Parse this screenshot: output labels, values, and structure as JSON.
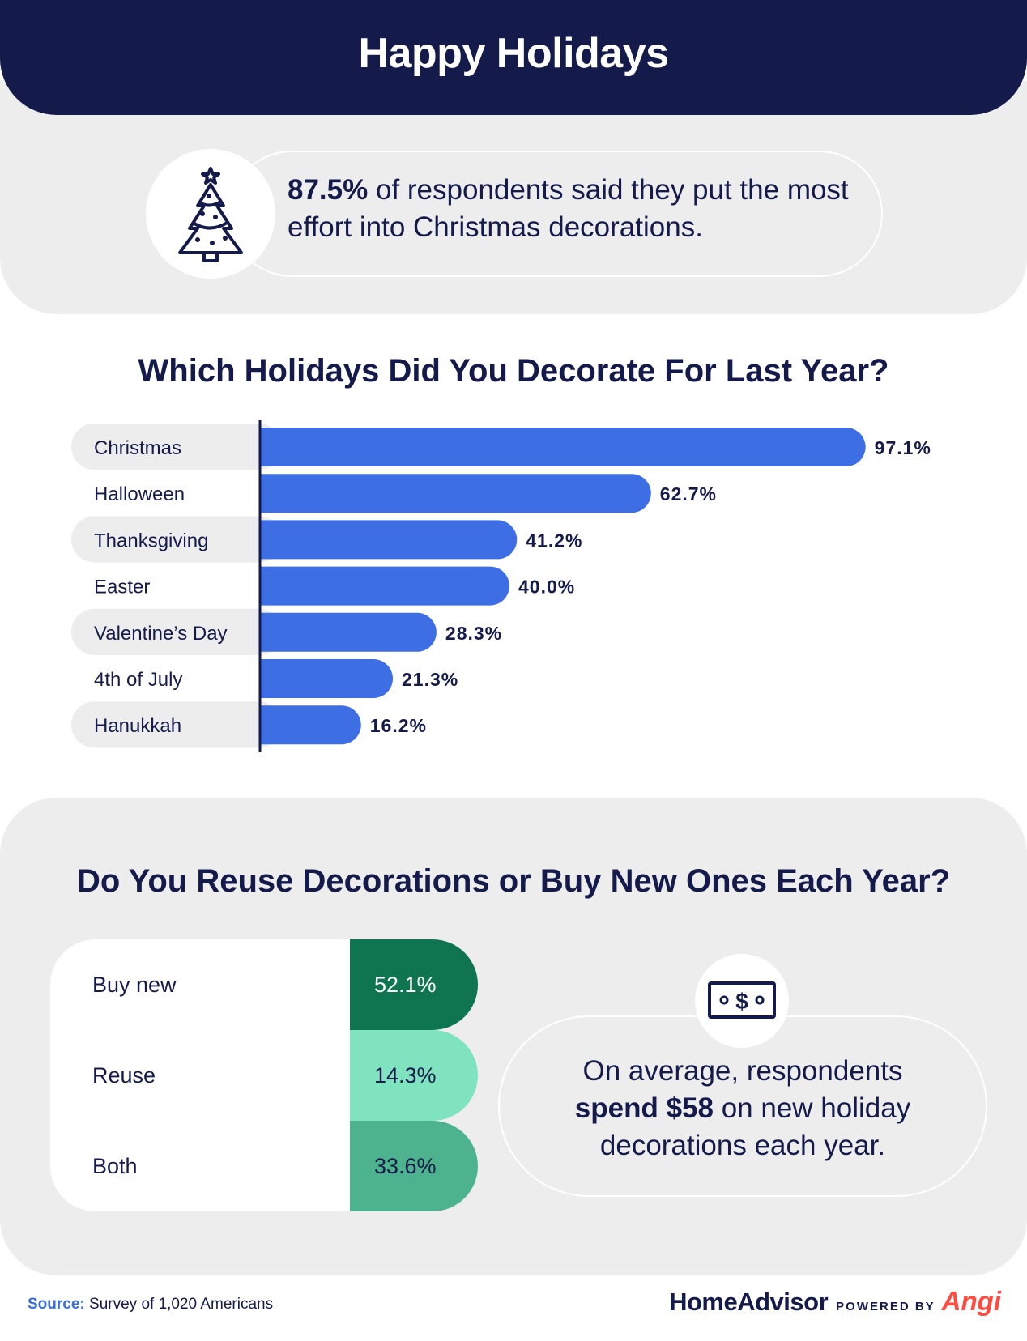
{
  "header": {
    "title": "Happy Holidays"
  },
  "callout": {
    "stat": "87.5%",
    "text": " of respondents said they put the most effort into Christmas decorations."
  },
  "icons": {
    "tree": "christmas-tree-icon",
    "money": "dollar-bill-icon"
  },
  "colors": {
    "navy": "#141a4a",
    "bar_blue": "#3d6ee4",
    "panel_gray": "#ededed",
    "buy_new": "#0f7450",
    "reuse": "#80e3c0",
    "both": "#4db38f",
    "angi_red": "#ff4a3f",
    "source_blue": "#3a6fe0"
  },
  "chart_data": {
    "type": "bar",
    "orientation": "horizontal",
    "title": "Which Holidays Did You Decorate For Last Year?",
    "categories": [
      "Christmas",
      "Halloween",
      "Thanksgiving",
      "Easter",
      "Valentine’s Day",
      "4th of July",
      "Hanukkah"
    ],
    "values": [
      97.1,
      62.7,
      41.2,
      40.0,
      28.3,
      21.3,
      16.2
    ],
    "value_labels": [
      "97.1%",
      "62.7%",
      "41.2%",
      "40.0%",
      "28.3%",
      "21.3%",
      "16.2%"
    ],
    "xlim": [
      0,
      100
    ],
    "grid": false,
    "legend": "none"
  },
  "reuse": {
    "title": "Do You Reuse Decorations or Buy New Ones Each Year?",
    "options": [
      {
        "label": "Buy new",
        "value": "52.1%"
      },
      {
        "label": "Reuse",
        "value": "14.3%"
      },
      {
        "label": "Both",
        "value": "33.6%"
      }
    ]
  },
  "spend": {
    "pre": "On average, respondents",
    "bold": "spend $58",
    "post": " on new holiday decorations each year."
  },
  "footer": {
    "source_label": "Source:",
    "source_text": " Survey of 1,020 Americans",
    "brand_name": "HomeAdvisor",
    "powered": "POWERED BY",
    "angi": "Angi"
  }
}
